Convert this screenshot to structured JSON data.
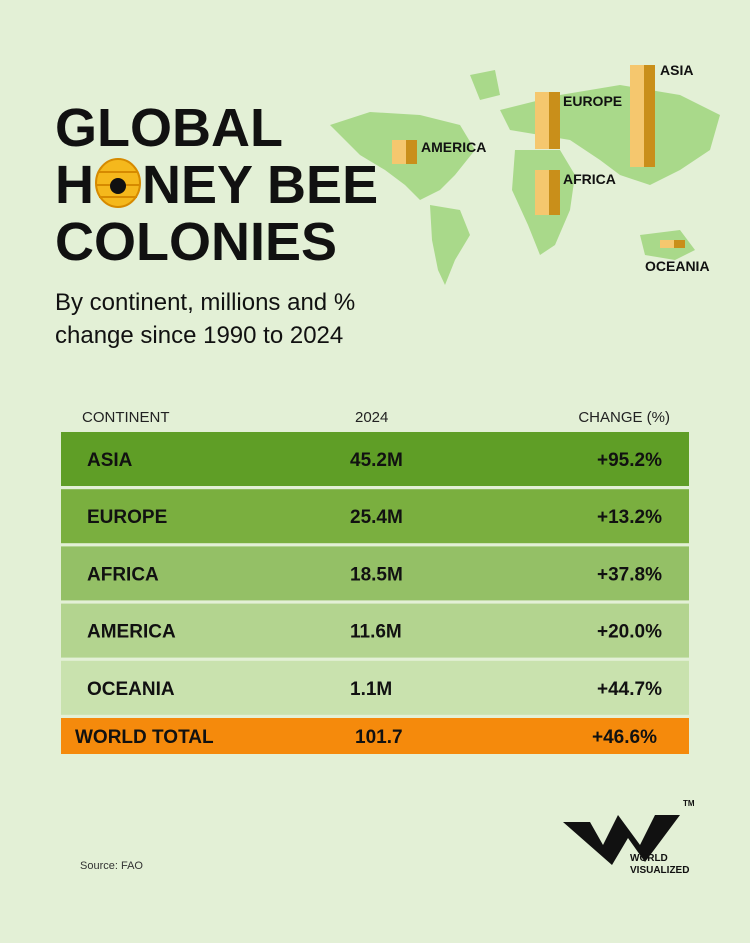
{
  "header": {
    "title_lines": [
      "GLOBAL",
      "H",
      "NEY BEE",
      "COLONIES"
    ],
    "subtitle_lines": [
      "By continent, millions and %",
      "change since 1990 to 2024"
    ]
  },
  "map": {
    "labels": [
      "ASIA",
      "EUROPE",
      "AMERICA",
      "AFRICA",
      "OCEANIA"
    ]
  },
  "table": {
    "columns": [
      "CONTINENT",
      "2024",
      "CHANGE (%)"
    ],
    "rows": [
      [
        "ASIA",
        "45.2M",
        "+95.2%"
      ],
      [
        "EUROPE",
        "25.4M",
        "+13.2%"
      ],
      [
        "AFRICA",
        "18.5M",
        "+37.8%"
      ],
      [
        "AMERICA",
        "11.6M",
        "+20.0%"
      ],
      [
        "OCEANIA",
        "1.1M",
        "+44.7%"
      ]
    ],
    "total": [
      "WORLD TOTAL",
      "101.7",
      "+46.6%"
    ]
  },
  "footer": {
    "source": "Source: FAO",
    "logo_lines": [
      "WORLD",
      "VISUALIZED"
    ],
    "trademark": "TM"
  }
}
